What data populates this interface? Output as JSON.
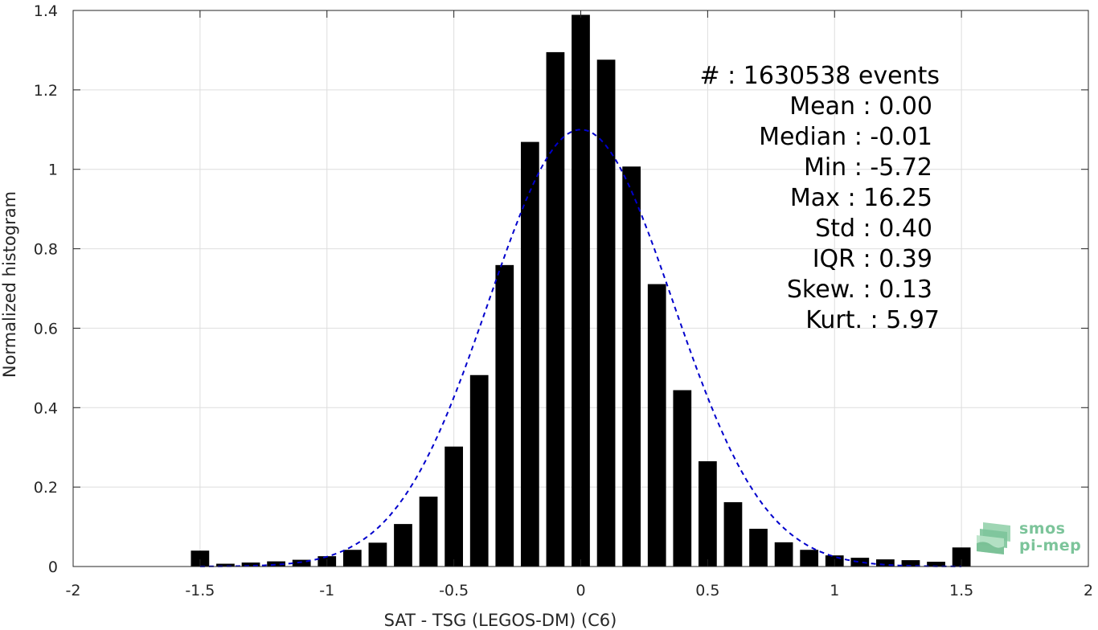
{
  "chart_data": {
    "type": "bar",
    "xlabel": "SAT - TSG (LEGOS-DM) (C6)",
    "ylabel": "Normalized histogram",
    "xlim": [
      -2,
      2
    ],
    "ylim": [
      0,
      1.4
    ],
    "x_ticks": [
      "-2",
      "-1.5",
      "-1",
      "-0.5",
      "0",
      "0.5",
      "1",
      "1.5",
      "2"
    ],
    "y_ticks": [
      "0",
      "0.2",
      "0.4",
      "0.6",
      "0.8",
      "1",
      "1.2",
      "1.4"
    ],
    "grid": true,
    "bin_centers": [
      -1.5,
      -1.4,
      -1.3,
      -1.2,
      -1.1,
      -1.0,
      -0.9,
      -0.8,
      -0.7,
      -0.6,
      -0.5,
      -0.4,
      -0.3,
      -0.2,
      -0.1,
      0.0,
      0.1,
      0.2,
      0.3,
      0.4,
      0.5,
      0.6,
      0.7,
      0.8,
      0.9,
      1.0,
      1.1,
      1.2,
      1.3,
      1.4,
      1.5
    ],
    "values": [
      0.04,
      0.007,
      0.01,
      0.013,
      0.017,
      0.026,
      0.042,
      0.06,
      0.107,
      0.176,
      0.302,
      0.482,
      0.759,
      1.069,
      1.295,
      1.389,
      1.276,
      1.007,
      0.711,
      0.444,
      0.265,
      0.162,
      0.095,
      0.061,
      0.042,
      0.028,
      0.022,
      0.018,
      0.016,
      0.012,
      0.048
    ],
    "bar_color": "#000000",
    "fit_curve": {
      "style": "dashed",
      "color": "#0000cc",
      "mean": 0.0,
      "std": 0.363,
      "peak": 1.1
    },
    "stats": [
      "#  : 1630538 events",
      "Mean : 0.00",
      "Median : -0.01",
      "Min : -5.72",
      "Max : 16.25",
      "Std : 0.40",
      "IQR : 0.39",
      "Skew. : 0.13",
      "Kurt. : 5.97"
    ]
  },
  "logo": {
    "line1": "smos",
    "line2": "pi-mep",
    "color": "#7cc49a"
  }
}
